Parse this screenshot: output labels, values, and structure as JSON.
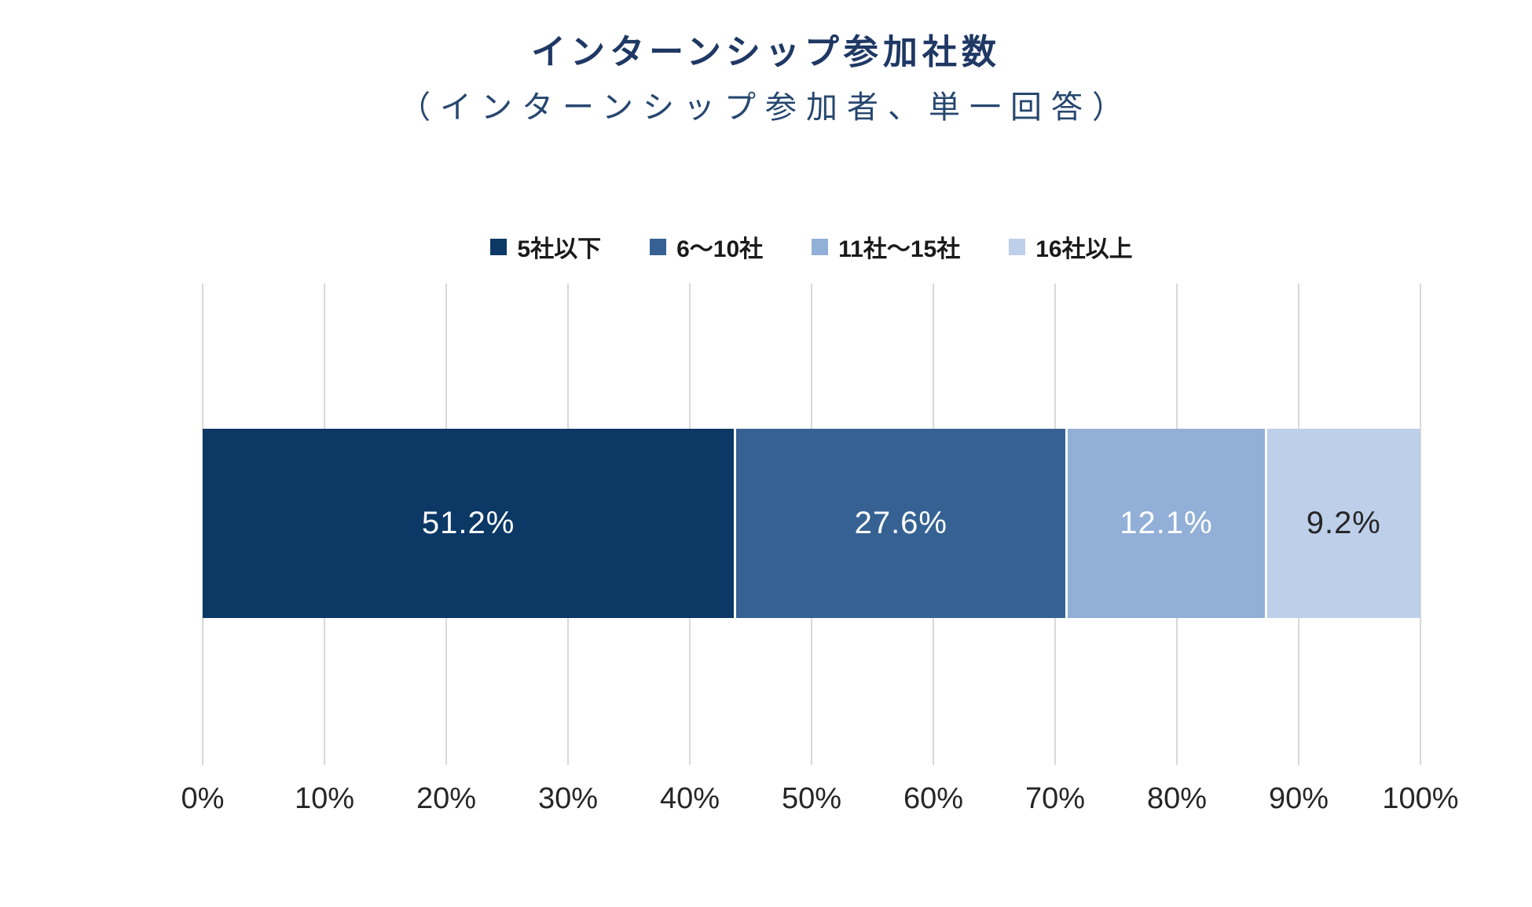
{
  "chart_data": {
    "type": "bar",
    "orientation": "horizontal-stacked",
    "title": "インターンシップ参加社数",
    "subtitle": "（インターンシップ参加者、単一回答）",
    "legend_position": "top",
    "grid": "vertical-only",
    "gridline_color": "#D9D9D9",
    "series": [
      {
        "name": "5社以下",
        "value": 51.2,
        "label": "51.2%",
        "color": "#0B3865",
        "label_color": "#FFFFFF"
      },
      {
        "name": "6〜10社",
        "value": 27.6,
        "label": "27.6%",
        "color": "#366293",
        "label_color": "#FFFFFF"
      },
      {
        "name": "11社〜15社",
        "value": 12.1,
        "label": "12.1%",
        "color": "#92AFD7",
        "label_color": "#FFFFFF"
      },
      {
        "name": "16社以上",
        "value": 9.2,
        "label": "9.2%",
        "color": "#BDCFE9",
        "label_color": "#262626"
      }
    ],
    "x_axis": {
      "min": 0,
      "max": 100,
      "ticks": [
        "0%",
        "10%",
        "20%",
        "30%",
        "40%",
        "50%",
        "60%",
        "70%",
        "80%",
        "90%",
        "100%"
      ]
    }
  }
}
